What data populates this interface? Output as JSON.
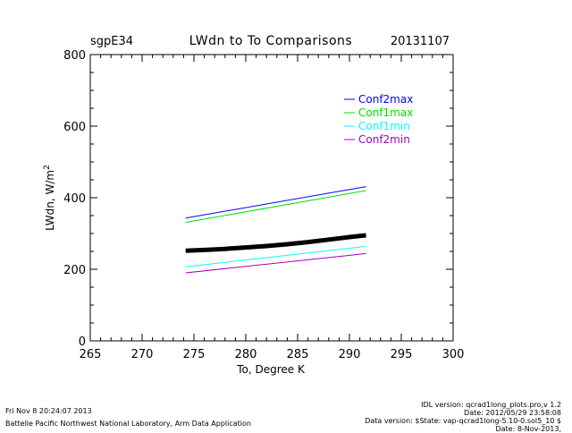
{
  "header": {
    "site": "sgpE34",
    "title": "LWdn to To Comparisons",
    "date": "20131107"
  },
  "chart_data": {
    "type": "line",
    "title": "LWdn to To Comparisons",
    "xlabel": "To, Degree K",
    "ylabel_main": "LWdn, W/m",
    "ylabel_sup": "2",
    "xlim": [
      265,
      300
    ],
    "ylim": [
      0,
      800
    ],
    "xticks": [
      265,
      270,
      275,
      280,
      285,
      290,
      295,
      300
    ],
    "yticks": [
      0,
      200,
      400,
      600,
      800
    ],
    "grid": false,
    "legend_position": "top-right",
    "series": [
      {
        "name": "Conf2max",
        "color": "#0000ff",
        "x": [
          274.2,
          291.6
        ],
        "y": [
          343,
          431
        ]
      },
      {
        "name": "Conf1max",
        "color": "#00e000",
        "x": [
          274.2,
          291.6
        ],
        "y": [
          331,
          420
        ]
      },
      {
        "name": "Conf1min",
        "color": "#00ffff",
        "x": [
          274.2,
          291.6
        ],
        "y": [
          207,
          264
        ]
      },
      {
        "name": "Conf2min",
        "color": "#a000c0",
        "x": [
          274.2,
          291.6
        ],
        "y": [
          190,
          244
        ]
      }
    ],
    "observed": {
      "color": "#000000",
      "x": [
        274.2,
        276,
        278,
        280,
        282,
        284,
        286,
        288,
        290,
        291.6
      ],
      "y": [
        252,
        254,
        257,
        261,
        265,
        270,
        276,
        283,
        290,
        295
      ]
    }
  },
  "footer": {
    "left_line1": "Fri Nov  8 20:24:07 2013",
    "left_line2": "Battelle Pacific Northwest National Laboratory, Arm Data Application",
    "right_line1": "IDL version: qcrad1long_plots.pro,v 1.2",
    "right_line2": "Date: 2012/05/29 23:58:08",
    "right_line3": "Data version: $State: vap-qcrad1long-5.10-0.sol5_10 $",
    "right_line4": "Date: 8-Nov-2013,"
  }
}
